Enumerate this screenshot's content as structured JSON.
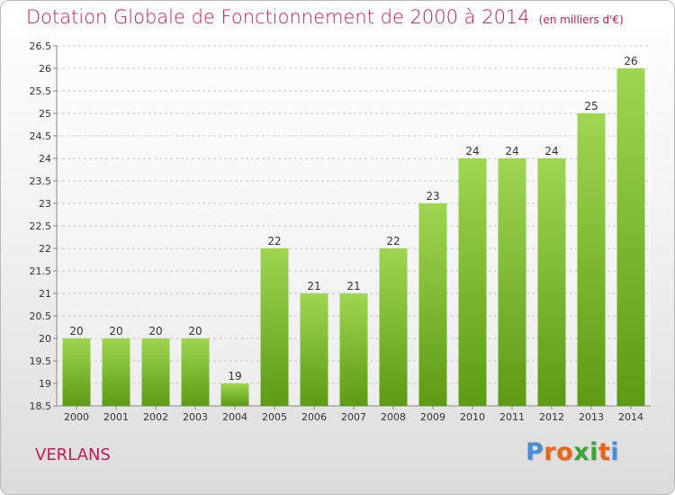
{
  "title": "Dotation Globale de Fonctionnement de 2000 à 2014",
  "unit_note": "(en milliers d'€)",
  "commune": "VERLANS",
  "logo": {
    "text": "Proxiti",
    "colors": [
      "#4a8fd4",
      "#e8661b",
      "#e8661b",
      "#3aa63a",
      "#3aa63a",
      "#e8661b",
      "#4a8fd4"
    ]
  },
  "colors": {
    "accent": "#c2185b",
    "bar_light": "#9fd651",
    "bar_dark": "#5e9a14"
  },
  "chart_data": {
    "type": "bar",
    "title": "Dotation Globale de Fonctionnement de 2000 à 2014",
    "subtitle": "(en milliers d'€)",
    "xlabel": "",
    "ylabel": "",
    "categories": [
      "2000",
      "2001",
      "2002",
      "2003",
      "2004",
      "2005",
      "2006",
      "2007",
      "2008",
      "2009",
      "2010",
      "2011",
      "2012",
      "2013",
      "2014"
    ],
    "values": [
      20,
      20,
      20,
      20,
      19,
      22,
      21,
      21,
      22,
      23,
      24,
      24,
      24,
      25,
      26
    ],
    "ylim": [
      18.5,
      26.5
    ],
    "yticks": [
      "18.5",
      "19",
      "19.5",
      "20",
      "20.5",
      "21",
      "21.5",
      "22",
      "22.5",
      "23",
      "23.5",
      "24",
      "24.5",
      "25",
      "25.5",
      "26",
      "26.5"
    ],
    "grid": true,
    "legend": "none"
  }
}
